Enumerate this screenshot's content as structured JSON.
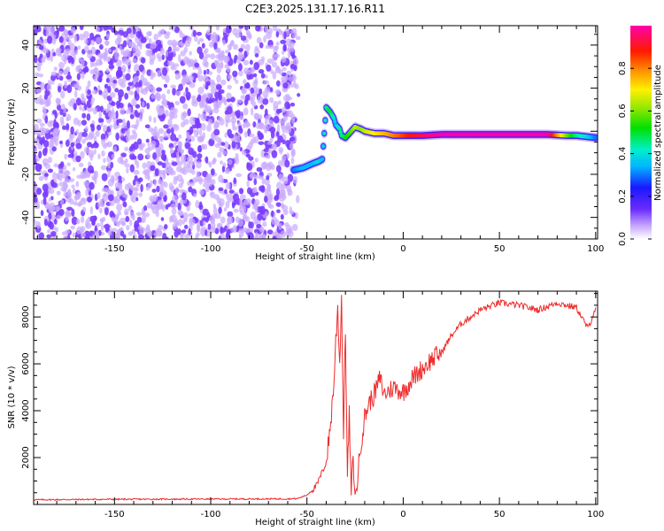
{
  "title": "C2E3.2025.131.17.16.R11",
  "colors": {
    "snr_line": "#ee2b2b",
    "noise": "#7a3cff",
    "noise_light": "#c9a9ff"
  },
  "chart_data": [
    {
      "type": "heatmap",
      "xlabel": "Height of straight line (km)",
      "ylabel": "Frequency (Hz)",
      "xlim": [
        -192,
        101
      ],
      "ylim": [
        -50,
        49
      ],
      "x_ticks": [
        -150,
        -100,
        -50,
        0,
        50,
        100
      ],
      "y_ticks": [
        -40,
        -20,
        0,
        20,
        40
      ],
      "colorbar": {
        "label": "Normalized spectral amplitude",
        "range": [
          0,
          1
        ],
        "ticks": [
          "0.0",
          "0.2",
          "0.4",
          "0.6",
          "0.8"
        ],
        "colormap": "rainbow (violet-blue-cyan-green-yellow-orange-red-magenta)"
      },
      "noise_region_x": [
        -192,
        -56
      ],
      "signal_trace": {
        "x": [
          -57,
          -52,
          -47,
          -44,
          -42,
          -40,
          -38,
          -36,
          -35,
          -33,
          -32,
          -30,
          -28,
          -26,
          -25,
          -22,
          -20,
          -15,
          -10,
          -5,
          0,
          5,
          10,
          20,
          30,
          50,
          75,
          85,
          90,
          95,
          100
        ],
        "frequency": [
          -18,
          -17,
          -15,
          -14,
          -13,
          11,
          9,
          6,
          3,
          1,
          -2,
          -3,
          -1,
          1,
          2,
          1,
          0,
          -1,
          -1,
          -2,
          -2,
          -2,
          -2,
          -1.5,
          -1.5,
          -1.5,
          -1.5,
          -2,
          -2,
          -2.5,
          -3
        ],
        "amplitude": [
          0.3,
          0.35,
          0.35,
          0.4,
          0.35,
          0.45,
          0.5,
          0.4,
          0.35,
          0.45,
          0.45,
          0.5,
          0.55,
          0.6,
          0.65,
          0.6,
          0.65,
          0.7,
          0.75,
          0.8,
          0.85,
          0.9,
          0.95,
          1.0,
          1.0,
          1.0,
          1.0,
          0.6,
          0.45,
          0.4,
          0.3
        ]
      }
    },
    {
      "type": "line",
      "xlabel": "Height of straight line (km)",
      "ylabel": "SNR (10 * v/v)",
      "xlim": [
        -192,
        101
      ],
      "ylim": [
        0,
        9100
      ],
      "x_ticks": [
        -150,
        -100,
        -50,
        0,
        50,
        100
      ],
      "y_ticks": [
        2000,
        4000,
        6000,
        8000
      ],
      "series": [
        {
          "x": [
            -192,
            -150,
            -100,
            -60,
            -55,
            -50,
            -45,
            -40,
            -38,
            -36,
            -35,
            -34,
            -33,
            -32,
            -31,
            -30,
            -29,
            -28,
            -27,
            -26,
            -25,
            -24,
            -22,
            -20,
            -18,
            -15,
            -12,
            -10,
            -5,
            0,
            5,
            10,
            15,
            20,
            25,
            30,
            40,
            50,
            60,
            70,
            80,
            90,
            96,
            100
          ],
          "y": [
            200,
            220,
            230,
            240,
            250,
            400,
            800,
            1800,
            3200,
            5200,
            7000,
            8400,
            6000,
            8800,
            3000,
            7600,
            1200,
            3800,
            400,
            2000,
            400,
            900,
            2600,
            3700,
            4300,
            4700,
            5400,
            4700,
            5000,
            4800,
            5400,
            5800,
            6200,
            6500,
            7200,
            7700,
            8300,
            8600,
            8500,
            8300,
            8600,
            8400,
            7500,
            8400
          ]
        }
      ]
    }
  ]
}
